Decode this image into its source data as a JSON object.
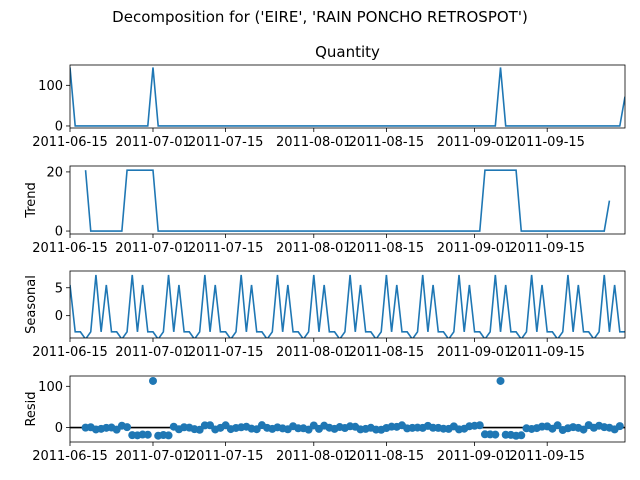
{
  "chart_data": {
    "type": "line",
    "suptitle": "Decomposition for ('EIRE', 'RAIN PONCHO RETROSPOT')",
    "x_ticks": [
      "2011-06-15",
      "2011-07-01",
      "2011-07-15",
      "2011-08-01",
      "2011-08-15",
      "2011-09-01",
      "2011-09-15"
    ],
    "x_range": [
      "2011-06-15",
      "2011-09-30"
    ],
    "panels": [
      {
        "name": "observed",
        "title": "Quantity",
        "ylabel": "",
        "kind": "line",
        "color": "#1f77b4",
        "ylim": [
          -5,
          150
        ],
        "yticks": [
          0,
          100
        ],
        "x": [
          "2011-06-15",
          "2011-06-16",
          "2011-06-30",
          "2011-07-01",
          "2011-07-02",
          "2011-09-05",
          "2011-09-06",
          "2011-09-07",
          "2011-09-29",
          "2011-09-30"
        ],
        "values": [
          144,
          0,
          0,
          144,
          0,
          0,
          144,
          0,
          0,
          72
        ]
      },
      {
        "name": "trend",
        "title": "",
        "ylabel": "Trend",
        "kind": "line",
        "color": "#1f77b4",
        "ylim": [
          -1,
          22
        ],
        "yticks": [
          0,
          20
        ],
        "x": [
          "2011-06-18",
          "2011-06-19",
          "2011-06-25",
          "2011-06-26",
          "2011-07-01",
          "2011-07-02",
          "2011-09-02",
          "2011-09-03",
          "2011-09-09",
          "2011-09-10",
          "2011-09-26",
          "2011-09-27"
        ],
        "values": [
          20.6,
          0,
          0,
          20.6,
          20.6,
          0,
          0,
          20.6,
          20.6,
          0,
          0,
          10.3
        ]
      },
      {
        "name": "seasonal",
        "title": "",
        "ylabel": "Seasonal",
        "kind": "line",
        "color": "#1f77b4",
        "ylim": [
          -4,
          8
        ],
        "yticks": [
          0,
          5
        ],
        "period_pattern": [
          5.5,
          -2.9,
          -2.9,
          -4.2,
          -2.9,
          7.3,
          -2.9
        ],
        "x_start": "2011-06-15",
        "x_end": "2011-09-30"
      },
      {
        "name": "resid",
        "title": "",
        "ylabel": "Resid",
        "kind": "scatter",
        "color": "#1f77b4",
        "ylim": [
          -35,
          125
        ],
        "yticks": [
          0,
          100
        ],
        "baseline": 0,
        "outliers": [
          {
            "x": "2011-07-01",
            "y": 113
          },
          {
            "x": "2011-09-06",
            "y": 113
          }
        ],
        "negative_runs": [
          {
            "from": "2011-06-27",
            "to": "2011-07-04",
            "y": -18
          },
          {
            "from": "2011-09-03",
            "to": "2011-09-10",
            "y": -18
          }
        ],
        "noise_amplitude": 6
      }
    ]
  }
}
